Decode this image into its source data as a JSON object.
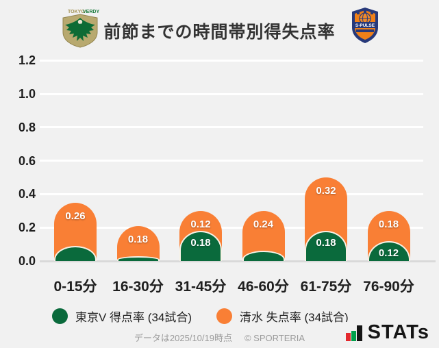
{
  "header": {
    "title": "前節までの時間帯別得失点率",
    "verdy_text_1": "TOKYO",
    "verdy_text_2": "VERDY",
    "spulse_text": "S-PULSE"
  },
  "chart_data": {
    "type": "bar",
    "stacked": true,
    "title": "前節までの時間帯別得失点率",
    "categories": [
      "0-15分",
      "16-30分",
      "31-45分",
      "46-60分",
      "61-75分",
      "76-90分"
    ],
    "series": [
      {
        "name": "東京V 得点率 (34試合)",
        "color": "#0a6a3c",
        "values": [
          0.09,
          0.03,
          0.18,
          0.06,
          0.18,
          0.12
        ],
        "labels": [
          "",
          "",
          "0.18",
          "",
          "0.18",
          "0.12"
        ]
      },
      {
        "name": "清水 失点率 (34試合)",
        "color": "#f97f35",
        "values": [
          0.26,
          0.18,
          0.12,
          0.24,
          0.32,
          0.18
        ],
        "labels": [
          "0.26",
          "0.18",
          "0.12",
          "0.24",
          "0.32",
          "0.18"
        ]
      }
    ],
    "ylim": [
      0,
      1.2
    ],
    "yticks": [
      "0.0",
      "0.2",
      "0.4",
      "0.6",
      "0.8",
      "1.0",
      "1.2"
    ],
    "grid": true,
    "legend_position": "bottom"
  },
  "legend": {
    "items": [
      {
        "label": "東京V 得点率 (34試合)",
        "color": "#0a6a3c"
      },
      {
        "label": "清水 失点率 (34試合)",
        "color": "#f97f35"
      }
    ]
  },
  "footer": {
    "note": "データは2025/10/19時点",
    "copyright": "© SPORTERIA",
    "brand": "STATs"
  }
}
